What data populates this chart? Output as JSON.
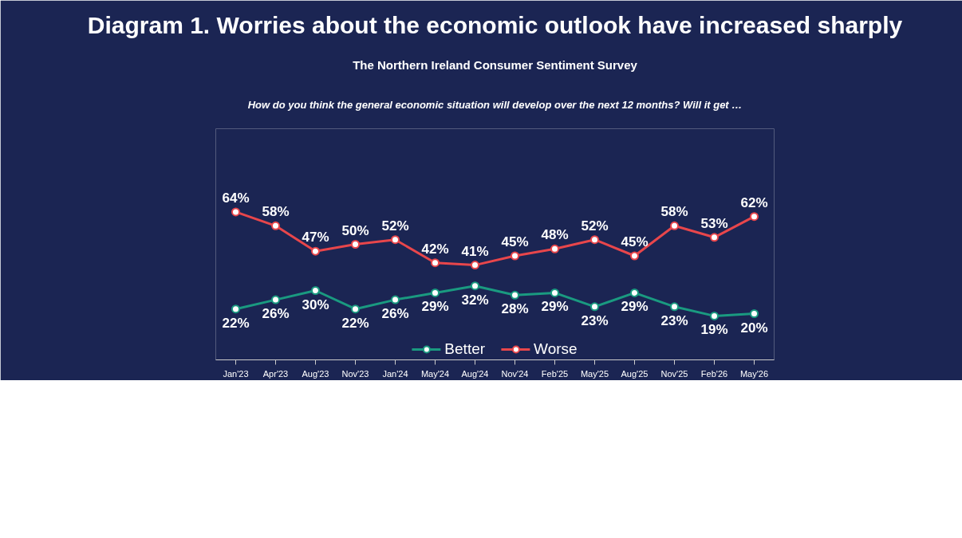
{
  "chart_data": {
    "type": "line",
    "title": "Diagram 1. Worries about the economic outlook have increased sharply",
    "subtitle": "The Northern Ireland Consumer Sentiment Survey",
    "annotations": [
      "How do you think the general economic situation will develop over the next 12 months? Will it get …"
    ],
    "categories": [
      "Jan'23",
      "Apr'23",
      "Aug'23",
      "Nov'23",
      "Jan'24",
      "May'24",
      "Aug'24",
      "Nov'24",
      "Feb'25",
      "May'25",
      "Aug'25",
      "Nov'25",
      "Feb'26",
      "May'26"
    ],
    "series": [
      {
        "name": "Better",
        "color": "#1a9a80",
        "values": [
          22,
          26,
          30,
          22,
          26,
          29,
          32,
          28,
          29,
          23,
          29,
          23,
          19,
          20
        ],
        "value_labels": [
          "22%",
          "26%",
          "30%",
          "22%",
          "26%",
          "29%",
          "32%",
          "28%",
          "29%",
          "23%",
          "29%",
          "23%",
          "19%",
          "20%"
        ]
      },
      {
        "name": "Worse",
        "color": "#e8464b",
        "values": [
          64,
          58,
          47,
          50,
          52,
          42,
          41,
          45,
          48,
          52,
          45,
          58,
          53,
          62
        ],
        "value_labels": [
          "64%",
          "58%",
          "47%",
          "50%",
          "52%",
          "42%",
          "41%",
          "45%",
          "48%",
          "52%",
          "45%",
          "58%",
          "53%",
          "62%"
        ]
      }
    ],
    "ylim": [
      0,
      100
    ],
    "tick_labels": "x",
    "marker": "circle",
    "line_style": "solid",
    "grid": false,
    "legend": "bottom"
  }
}
